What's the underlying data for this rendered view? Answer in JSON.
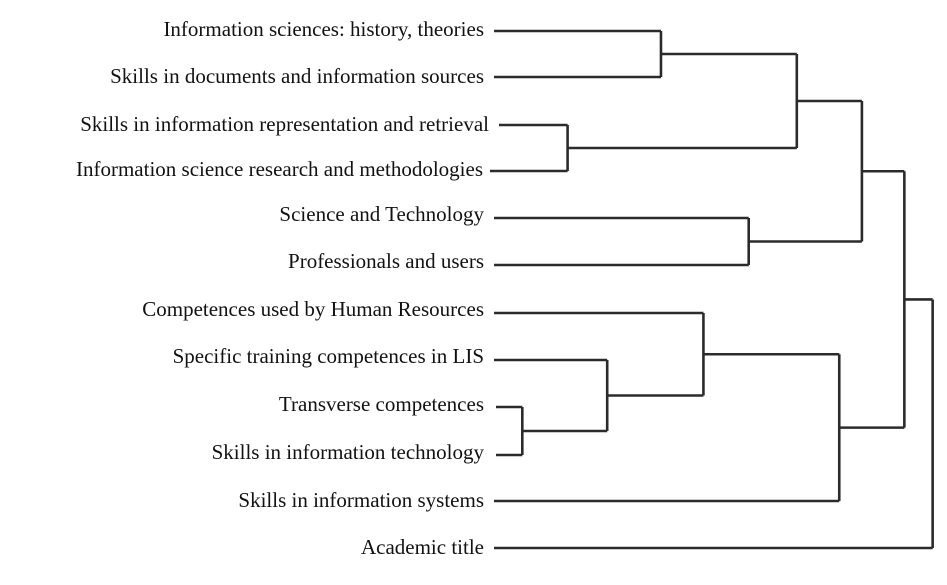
{
  "diagram": {
    "type": "dendrogram",
    "line_color": "#2b2b2b",
    "leaves": [
      {
        "id": 0,
        "label": "Information sciences: history, theories"
      },
      {
        "id": 1,
        "label": "Skills in documents and information sources"
      },
      {
        "id": 2,
        "label": "Skills in information representation and retrieval"
      },
      {
        "id": 3,
        "label": "Information science research and methodologies"
      },
      {
        "id": 4,
        "label": "Science and Technology"
      },
      {
        "id": 5,
        "label": "Professionals and users"
      },
      {
        "id": 6,
        "label": "Competences used by Human Resources"
      },
      {
        "id": 7,
        "label": "Specific training competences in LIS"
      },
      {
        "id": 8,
        "label": "Transverse competences"
      },
      {
        "id": 9,
        "label": "Skills in information technology"
      },
      {
        "id": 10,
        "label": "Skills in information systems"
      },
      {
        "id": 11,
        "label": "Academic title"
      }
    ],
    "merges": [
      {
        "id": "m1",
        "children": [
          "L8",
          "L9"
        ],
        "distance": 1.0
      },
      {
        "id": "m2",
        "children": [
          "L2",
          "L3"
        ],
        "distance": 2.6
      },
      {
        "id": "m3",
        "children": [
          "L7",
          "m1"
        ],
        "distance": 4.0
      },
      {
        "id": "m4",
        "children": [
          "L0",
          "L1"
        ],
        "distance": 5.9
      },
      {
        "id": "m5",
        "children": [
          "L6",
          "m3"
        ],
        "distance": 7.4
      },
      {
        "id": "m6",
        "children": [
          "L4",
          "L5"
        ],
        "distance": 9.0
      },
      {
        "id": "m7",
        "children": [
          "m4",
          "m2"
        ],
        "distance": 10.7
      },
      {
        "id": "m8",
        "children": [
          "m5",
          "L10"
        ],
        "distance": 12.2
      },
      {
        "id": "m9",
        "children": [
          "m7",
          "m6"
        ],
        "distance": 13.0
      },
      {
        "id": "m10",
        "children": [
          "m9",
          "m8"
        ],
        "distance": 14.5
      },
      {
        "id": "m11",
        "children": [
          "m10",
          "L11"
        ],
        "distance": 15.5
      }
    ]
  }
}
